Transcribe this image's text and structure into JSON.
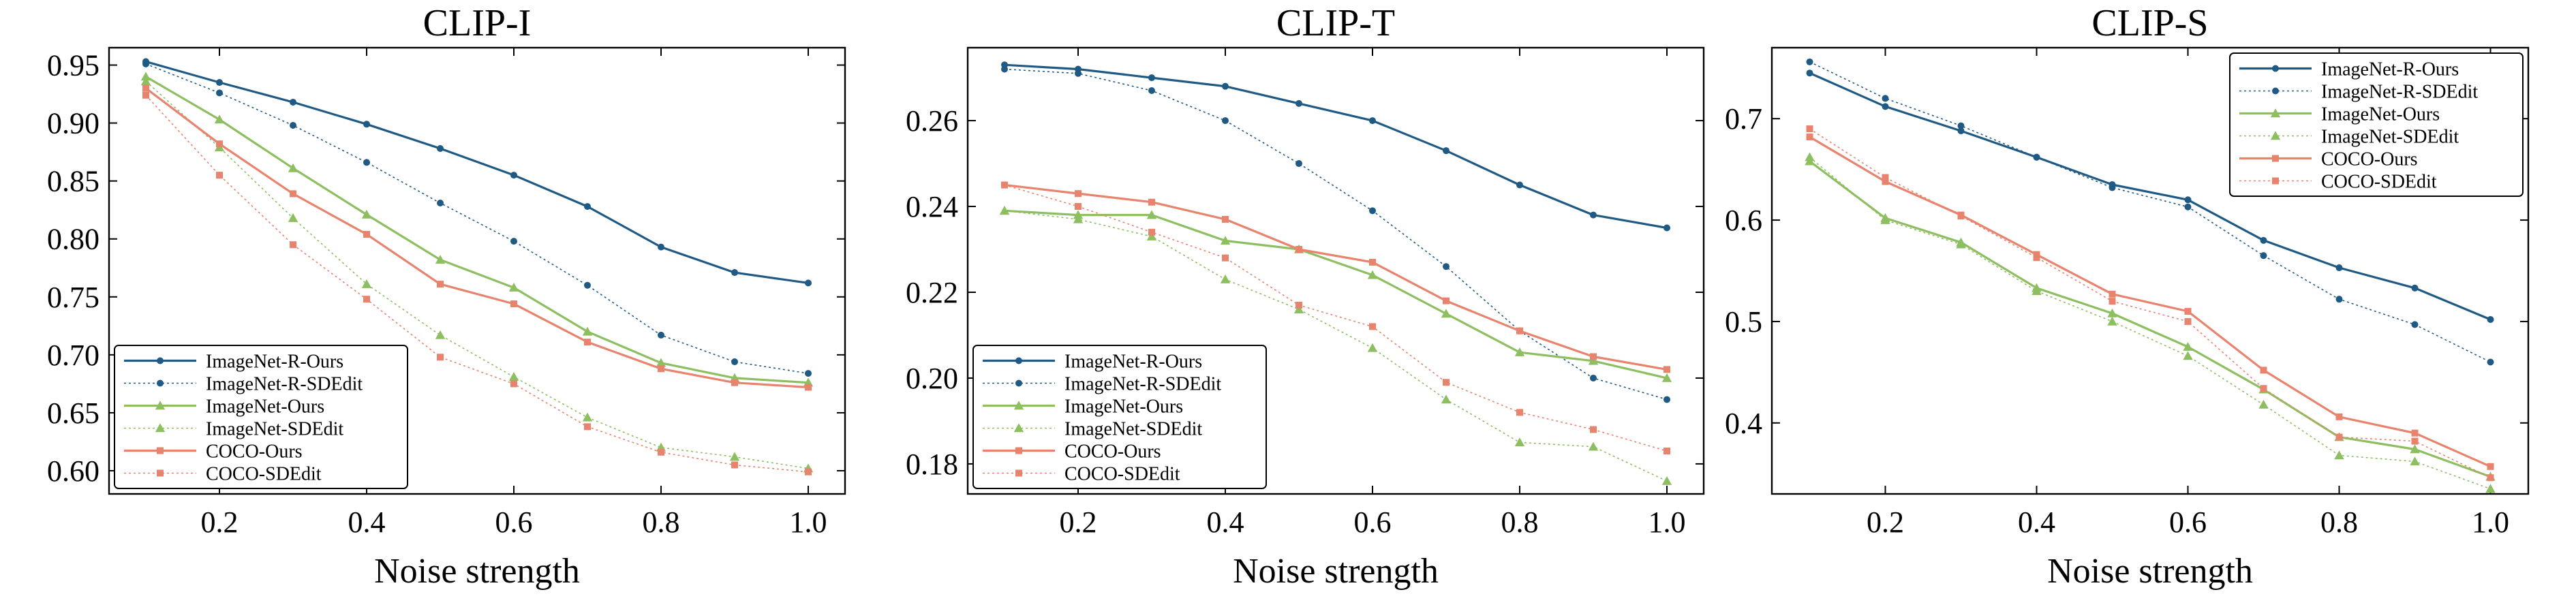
{
  "xlabel": "Noise strength",
  "series_styles": [
    {
      "name": "ImageNet-R-Ours",
      "color": "#1f5a85",
      "dash": "",
      "width": 3.2,
      "marker": "circle",
      "msize": 5
    },
    {
      "name": "ImageNet-R-SDEdit",
      "color": "#1f5a85",
      "dash": "3,4",
      "width": 1.6,
      "marker": "circle",
      "msize": 5
    },
    {
      "name": "ImageNet-Ours",
      "color": "#8dbf61",
      "dash": "",
      "width": 3.2,
      "marker": "triangle",
      "msize": 6
    },
    {
      "name": "ImageNet-SDEdit",
      "color": "#8dbf61",
      "dash": "3,4",
      "width": 1.6,
      "marker": "triangle",
      "msize": 6
    },
    {
      "name": "COCO-Ours",
      "color": "#e8836e",
      "dash": "",
      "width": 3.2,
      "marker": "square",
      "msize": 5
    },
    {
      "name": "COCO-SDEdit",
      "color": "#e8836e",
      "dash": "3,4",
      "width": 1.6,
      "marker": "square",
      "msize": 5
    }
  ],
  "chart_data": [
    {
      "type": "line",
      "title": "CLIP-I",
      "xlabel": "Noise strength",
      "ylabel": "",
      "x": [
        0.1,
        0.2,
        0.3,
        0.4,
        0.5,
        0.6,
        0.7,
        0.8,
        0.9,
        1.0
      ],
      "xlim": [
        0.05,
        1.05
      ],
      "ylim": [
        0.58,
        0.965
      ],
      "xticks": [
        "0.2",
        "0.4",
        "0.6",
        "0.8",
        "1.0"
      ],
      "yticks": [
        "0.60",
        "0.65",
        "0.70",
        "0.75",
        "0.80",
        "0.85",
        "0.90",
        "0.95"
      ],
      "legend_position": "bottom-left",
      "series": [
        {
          "name": "ImageNet-R-Ours",
          "values": [
            0.953,
            0.935,
            0.918,
            0.899,
            0.878,
            0.855,
            0.828,
            0.793,
            0.771,
            0.762
          ]
        },
        {
          "name": "ImageNet-R-SDEdit",
          "values": [
            0.951,
            0.926,
            0.898,
            0.866,
            0.831,
            0.798,
            0.76,
            0.717,
            0.694,
            0.684
          ]
        },
        {
          "name": "ImageNet-Ours",
          "values": [
            0.94,
            0.903,
            0.861,
            0.821,
            0.782,
            0.758,
            0.72,
            0.693,
            0.68,
            0.676
          ]
        },
        {
          "name": "ImageNet-SDEdit",
          "values": [
            0.936,
            0.879,
            0.818,
            0.761,
            0.717,
            0.681,
            0.646,
            0.62,
            0.612,
            0.602
          ]
        },
        {
          "name": "COCO-Ours",
          "values": [
            0.93,
            0.882,
            0.839,
            0.804,
            0.761,
            0.744,
            0.711,
            0.688,
            0.676,
            0.672
          ]
        },
        {
          "name": "COCO-SDEdit",
          "values": [
            0.924,
            0.855,
            0.795,
            0.748,
            0.698,
            0.675,
            0.638,
            0.616,
            0.605,
            0.599
          ]
        }
      ]
    },
    {
      "type": "line",
      "title": "CLIP-T",
      "xlabel": "Noise strength",
      "ylabel": "",
      "x": [
        0.1,
        0.2,
        0.3,
        0.4,
        0.5,
        0.6,
        0.7,
        0.8,
        0.9,
        1.0
      ],
      "xlim": [
        0.05,
        1.05
      ],
      "ylim": [
        0.173,
        0.277
      ],
      "xticks": [
        "0.2",
        "0.4",
        "0.6",
        "0.8",
        "1.0"
      ],
      "yticks": [
        "0.18",
        "0.20",
        "0.22",
        "0.24",
        "0.26"
      ],
      "legend_position": "bottom-left",
      "series": [
        {
          "name": "ImageNet-R-Ours",
          "values": [
            0.273,
            0.272,
            0.27,
            0.268,
            0.264,
            0.26,
            0.253,
            0.245,
            0.238,
            0.235
          ]
        },
        {
          "name": "ImageNet-R-SDEdit",
          "values": [
            0.272,
            0.271,
            0.267,
            0.26,
            0.25,
            0.239,
            0.226,
            0.211,
            0.2,
            0.195
          ]
        },
        {
          "name": "ImageNet-Ours",
          "values": [
            0.239,
            0.238,
            0.238,
            0.232,
            0.23,
            0.224,
            0.215,
            0.206,
            0.204,
            0.2
          ]
        },
        {
          "name": "ImageNet-SDEdit",
          "values": [
            0.239,
            0.237,
            0.233,
            0.223,
            0.216,
            0.207,
            0.195,
            0.185,
            0.184,
            0.176
          ]
        },
        {
          "name": "COCO-Ours",
          "values": [
            0.245,
            0.243,
            0.241,
            0.237,
            0.23,
            0.227,
            0.218,
            0.211,
            0.205,
            0.202
          ]
        },
        {
          "name": "COCO-SDEdit",
          "values": [
            0.245,
            0.24,
            0.234,
            0.228,
            0.217,
            0.212,
            0.199,
            0.192,
            0.188,
            0.183
          ]
        }
      ]
    },
    {
      "type": "line",
      "title": "CLIP-S",
      "xlabel": "Noise strength",
      "ylabel": "",
      "x": [
        0.1,
        0.2,
        0.3,
        0.4,
        0.5,
        0.6,
        0.7,
        0.8,
        0.9,
        1.0
      ],
      "xlim": [
        0.05,
        1.05
      ],
      "ylim": [
        0.33,
        0.77
      ],
      "xticks": [
        "0.2",
        "0.4",
        "0.6",
        "0.8",
        "1.0"
      ],
      "yticks": [
        "0.4",
        "0.5",
        "0.6",
        "0.7"
      ],
      "legend_position": "top-right",
      "series": [
        {
          "name": "ImageNet-R-Ours",
          "values": [
            0.745,
            0.712,
            0.688,
            0.662,
            0.635,
            0.62,
            0.58,
            0.553,
            0.533,
            0.502
          ]
        },
        {
          "name": "ImageNet-R-SDEdit",
          "values": [
            0.756,
            0.72,
            0.693,
            0.662,
            0.632,
            0.613,
            0.565,
            0.522,
            0.497,
            0.46
          ]
        },
        {
          "name": "ImageNet-Ours",
          "values": [
            0.658,
            0.602,
            0.578,
            0.533,
            0.508,
            0.475,
            0.433,
            0.386,
            0.374,
            0.347
          ]
        },
        {
          "name": "ImageNet-SDEdit",
          "values": [
            0.662,
            0.6,
            0.576,
            0.53,
            0.5,
            0.466,
            0.418,
            0.368,
            0.362,
            0.335
          ]
        },
        {
          "name": "COCO-Ours",
          "values": [
            0.682,
            0.638,
            0.605,
            0.566,
            0.527,
            0.51,
            0.452,
            0.406,
            0.39,
            0.357
          ]
        },
        {
          "name": "COCO-SDEdit",
          "values": [
            0.69,
            0.642,
            0.604,
            0.563,
            0.52,
            0.5,
            0.434,
            0.386,
            0.382,
            0.346
          ]
        }
      ]
    }
  ]
}
